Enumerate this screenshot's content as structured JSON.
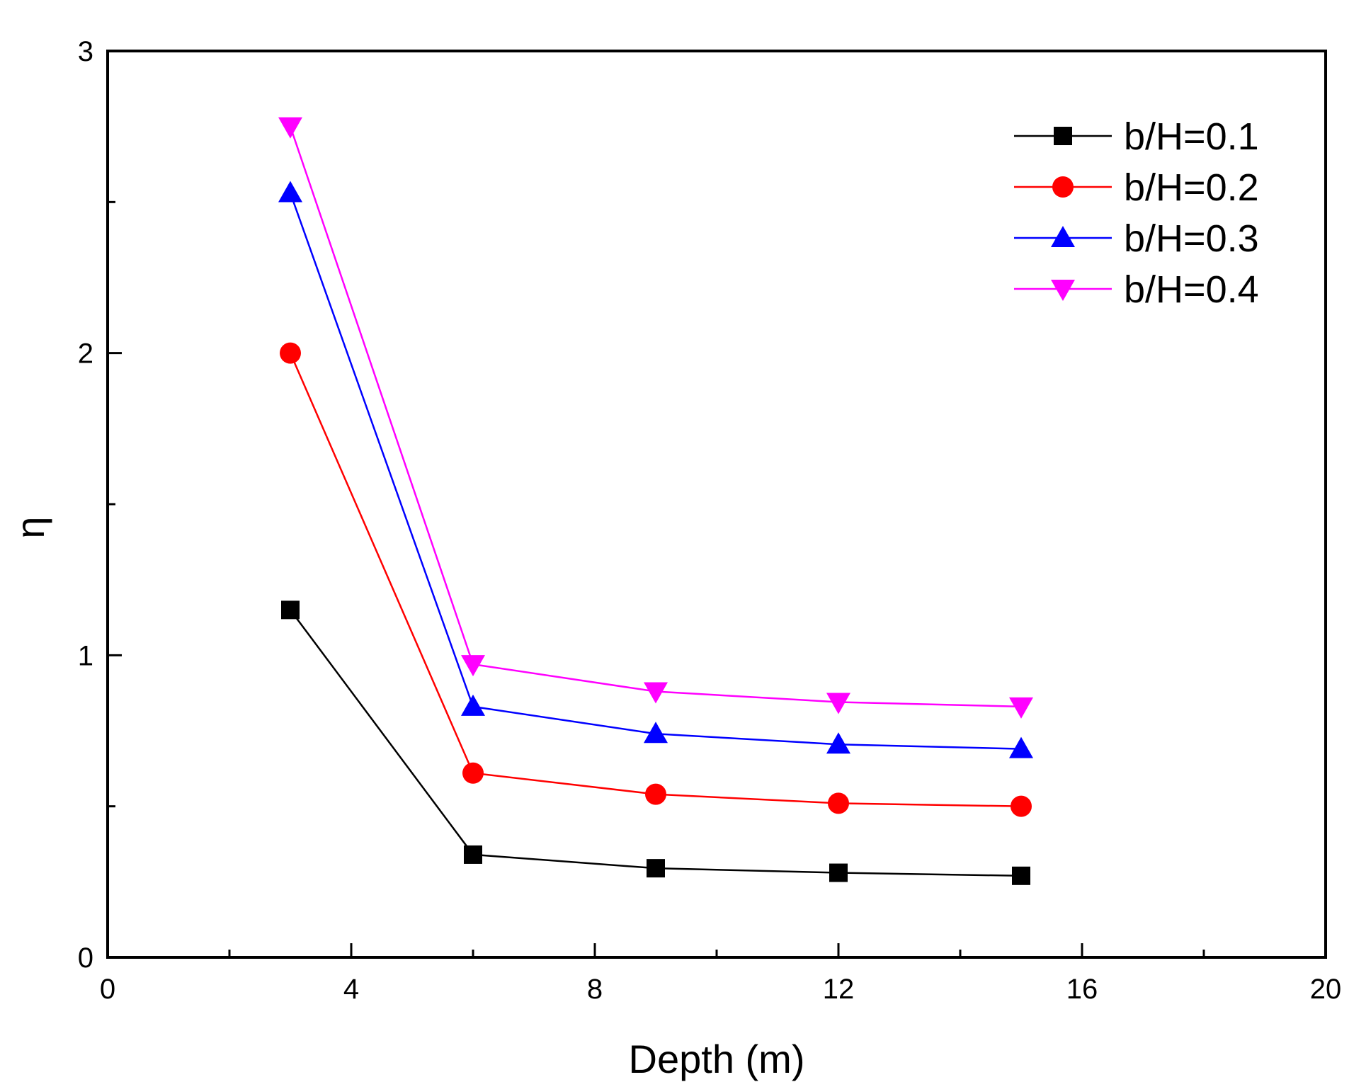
{
  "chart_data": {
    "type": "line",
    "title": "",
    "xlabel": "Depth (m)",
    "ylabel": "η",
    "xlim": [
      0,
      20
    ],
    "ylim": [
      0,
      3
    ],
    "xticks": [
      0,
      4,
      8,
      12,
      16,
      20
    ],
    "yticks": [
      0,
      1,
      2,
      3
    ],
    "xtick_labels": [
      "0",
      "4",
      "8",
      "12",
      "16",
      "20"
    ],
    "ytick_labels": [
      "0",
      "1",
      "2",
      "3"
    ],
    "legend_position": "top-right",
    "x": [
      3,
      6,
      9,
      12,
      15
    ],
    "series": [
      {
        "name": "b/H=0.1",
        "color": "#000000",
        "marker": "square",
        "values": [
          1.15,
          0.34,
          0.295,
          0.28,
          0.27
        ]
      },
      {
        "name": "b/H=0.2",
        "color": "#ff0000",
        "marker": "circle",
        "values": [
          2.0,
          0.61,
          0.54,
          0.51,
          0.5
        ]
      },
      {
        "name": "b/H=0.3",
        "color": "#0000ff",
        "marker": "triangle-up",
        "values": [
          2.53,
          0.83,
          0.74,
          0.705,
          0.69
        ]
      },
      {
        "name": "b/H=0.4",
        "color": "#ff00ff",
        "marker": "triangle-down",
        "values": [
          2.75,
          0.97,
          0.88,
          0.845,
          0.83
        ]
      }
    ]
  }
}
